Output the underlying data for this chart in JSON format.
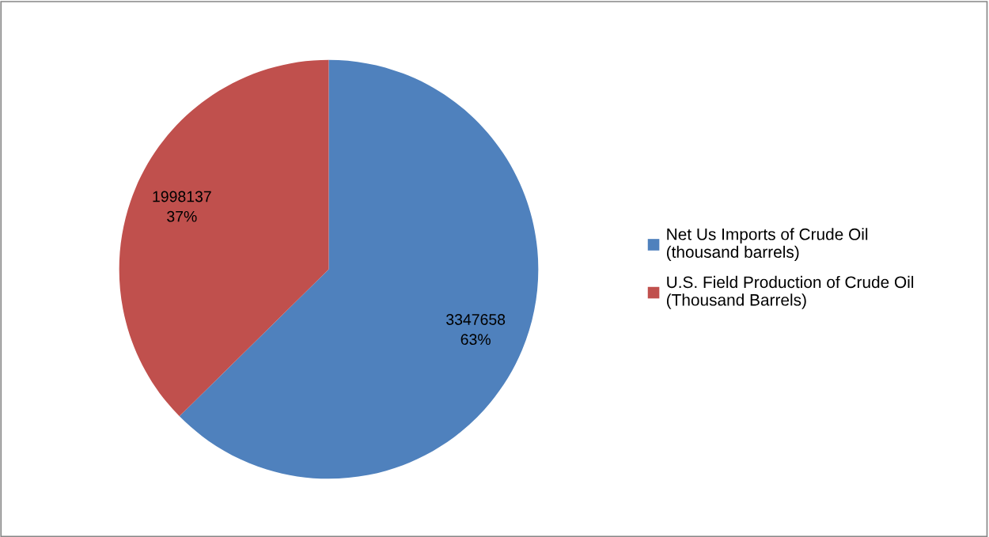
{
  "chart_data": {
    "type": "pie",
    "categories": [
      "Net Us Imports of Crude Oil\n(thousand barrels)",
      "U.S. Field Production of Crude Oil\n(Thousand Barrels)"
    ],
    "values": [
      3347658,
      1998137
    ],
    "colors": [
      "#4f81bd",
      "#c0504d"
    ],
    "value_labels": [
      "3347658\n63%",
      "1998137\n37%"
    ],
    "legend": "right"
  }
}
